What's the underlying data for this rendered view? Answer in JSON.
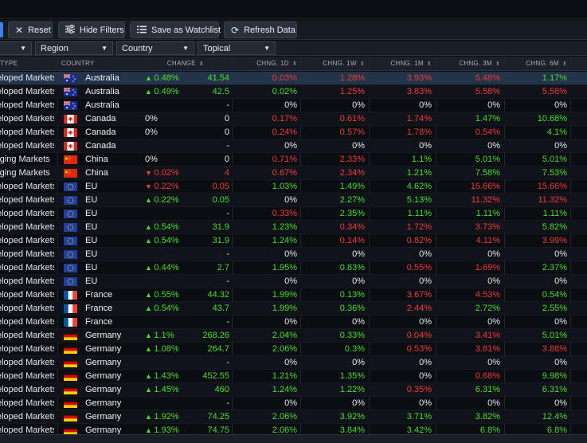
{
  "toolbar": {
    "reset_label": "Reset",
    "hide_filters_label": "Hide Filters",
    "save_watchlist_label": "Save as Watchlist",
    "refresh_label": "Refresh Data"
  },
  "filters": {
    "type_caret": "▼",
    "region_label": "Region",
    "country_label": "Country",
    "topical_label": "Topical"
  },
  "columns": {
    "type": "TYPE",
    "country": "COUNTRY",
    "change": "CHANGE",
    "chng_1d": "CHNG. 1D",
    "chng_1w": "CHNG. 1W",
    "chng_1m": "CHNG. 1M",
    "chng_3m": "CHNG. 3M",
    "chng_6m": "CHNG. 6M"
  },
  "colors": {
    "positive": "#4ade2a",
    "negative": "#ef3b3b",
    "accent": "#3b82f6"
  },
  "rows": [
    {
      "type": "eloped Markets",
      "flag": "au",
      "country": "Australia",
      "dir": "up",
      "pct": "0.48%",
      "val": "41.54",
      "d1": "0.03%",
      "w1": "1.28%",
      "m1": "3.93%",
      "m3": "5.48%",
      "m6": "1.17%",
      "s": [
        "neg",
        "neg",
        "neg",
        "neg",
        "pos"
      ],
      "vs": "pos"
    },
    {
      "type": "eloped Markets",
      "flag": "au",
      "country": "Australia",
      "dir": "up",
      "pct": "0.49%",
      "val": "42.5",
      "d1": "0.02%",
      "w1": "1.25%",
      "m1": "3.83%",
      "m3": "5.58%",
      "m6": "5.58%",
      "s": [
        "pos",
        "neg",
        "neg",
        "neg",
        "neg"
      ],
      "vs": "pos"
    },
    {
      "type": "eloped Markets",
      "flag": "au",
      "country": "Australia",
      "dir": "",
      "pct": "",
      "val": "-",
      "d1": "0%",
      "w1": "0%",
      "m1": "0%",
      "m3": "0%",
      "m6": "0%",
      "s": [
        "neu",
        "neu",
        "neu",
        "neu",
        "neu"
      ],
      "vs": "neu"
    },
    {
      "type": "eloped Markets",
      "flag": "ca",
      "country": "Canada",
      "dir": "",
      "pct": "0%",
      "val": "0",
      "d1": "0.17%",
      "w1": "0.61%",
      "m1": "1.74%",
      "m3": "1.47%",
      "m6": "10.68%",
      "s": [
        "neg",
        "neg",
        "neg",
        "pos",
        "pos"
      ],
      "vs": "neu"
    },
    {
      "type": "eloped Markets",
      "flag": "ca",
      "country": "Canada",
      "dir": "",
      "pct": "0%",
      "val": "0",
      "d1": "0.24%",
      "w1": "0.57%",
      "m1": "1.78%",
      "m3": "0.54%",
      "m6": "4.1%",
      "s": [
        "neg",
        "neg",
        "neg",
        "neg",
        "pos"
      ],
      "vs": "neu"
    },
    {
      "type": "eloped Markets",
      "flag": "ca",
      "country": "Canada",
      "dir": "",
      "pct": "",
      "val": "-",
      "d1": "0%",
      "w1": "0%",
      "m1": "0%",
      "m3": "0%",
      "m6": "0%",
      "s": [
        "neu",
        "neu",
        "neu",
        "neu",
        "neu"
      ],
      "vs": "neu"
    },
    {
      "type": "rging Markets",
      "flag": "cn",
      "country": "China",
      "dir": "",
      "pct": "0%",
      "val": "0",
      "d1": "0.71%",
      "w1": "2.33%",
      "m1": "1.1%",
      "m3": "5.01%",
      "m6": "5.01%",
      "s": [
        "neg",
        "neg",
        "pos",
        "pos",
        "pos"
      ],
      "vs": "neu"
    },
    {
      "type": "rging Markets",
      "flag": "cn",
      "country": "China",
      "dir": "dn",
      "pct": "0.02%",
      "val": "4",
      "d1": "0.67%",
      "w1": "2.34%",
      "m1": "1.21%",
      "m3": "7.58%",
      "m6": "7.53%",
      "s": [
        "neg",
        "neg",
        "pos",
        "pos",
        "pos"
      ],
      "vs": "neg"
    },
    {
      "type": "eloped Markets",
      "flag": "eu",
      "country": "EU",
      "dir": "dn",
      "pct": "0.22%",
      "val": "0.05",
      "d1": "1.03%",
      "w1": "1.49%",
      "m1": "4.62%",
      "m3": "15.66%",
      "m6": "15.66%",
      "s": [
        "pos",
        "pos",
        "pos",
        "neg",
        "neg"
      ],
      "vs": "neg"
    },
    {
      "type": "eloped Markets",
      "flag": "eu",
      "country": "EU",
      "dir": "up",
      "pct": "0.22%",
      "val": "0.05",
      "d1": "0%",
      "w1": "2.27%",
      "m1": "5.13%",
      "m3": "11.32%",
      "m6": "11.32%",
      "s": [
        "neu",
        "pos",
        "pos",
        "neg",
        "neg"
      ],
      "vs": "pos"
    },
    {
      "type": "eloped Markets",
      "flag": "eu",
      "country": "EU",
      "dir": "",
      "pct": "",
      "val": "-",
      "d1": "0.33%",
      "w1": "2.35%",
      "m1": "1.11%",
      "m3": "1.11%",
      "m6": "1.11%",
      "s": [
        "neg",
        "pos",
        "pos",
        "pos",
        "pos"
      ],
      "vs": "neu"
    },
    {
      "type": "eloped Markets",
      "flag": "eu",
      "country": "EU",
      "dir": "up",
      "pct": "0.54%",
      "val": "31.9",
      "d1": "1.23%",
      "w1": "0.34%",
      "m1": "1.72%",
      "m3": "3.73%",
      "m6": "5.82%",
      "s": [
        "pos",
        "neg",
        "neg",
        "neg",
        "pos"
      ],
      "vs": "pos"
    },
    {
      "type": "eloped Markets",
      "flag": "eu",
      "country": "EU",
      "dir": "up",
      "pct": "0.54%",
      "val": "31.9",
      "d1": "1.24%",
      "w1": "0.14%",
      "m1": "0.82%",
      "m3": "4.11%",
      "m6": "3.99%",
      "s": [
        "pos",
        "neg",
        "neg",
        "neg",
        "neg"
      ],
      "vs": "pos"
    },
    {
      "type": "eloped Markets",
      "flag": "eu",
      "country": "EU",
      "dir": "",
      "pct": "",
      "val": "-",
      "d1": "0%",
      "w1": "0%",
      "m1": "0%",
      "m3": "0%",
      "m6": "0%",
      "s": [
        "neu",
        "neu",
        "neu",
        "neu",
        "neu"
      ],
      "vs": "neu"
    },
    {
      "type": "eloped Markets",
      "flag": "eu",
      "country": "EU",
      "dir": "up",
      "pct": "0.44%",
      "val": "2.7",
      "d1": "1.95%",
      "w1": "0.83%",
      "m1": "0.55%",
      "m3": "1.69%",
      "m6": "2.37%",
      "s": [
        "pos",
        "pos",
        "neg",
        "neg",
        "pos"
      ],
      "vs": "pos"
    },
    {
      "type": "eloped Markets",
      "flag": "eu",
      "country": "EU",
      "dir": "",
      "pct": "",
      "val": "-",
      "d1": "0%",
      "w1": "0%",
      "m1": "0%",
      "m3": "0%",
      "m6": "0%",
      "s": [
        "neu",
        "neu",
        "neu",
        "neu",
        "neu"
      ],
      "vs": "neu"
    },
    {
      "type": "eloped Markets",
      "flag": "fr",
      "country": "France",
      "dir": "up",
      "pct": "0.55%",
      "val": "44.32",
      "d1": "1.99%",
      "w1": "0.13%",
      "m1": "3.67%",
      "m3": "4.53%",
      "m6": "0.54%",
      "s": [
        "pos",
        "pos",
        "neg",
        "neg",
        "pos"
      ],
      "vs": "pos"
    },
    {
      "type": "eloped Markets",
      "flag": "fr",
      "country": "France",
      "dir": "up",
      "pct": "0.54%",
      "val": "43.7",
      "d1": "1.99%",
      "w1": "0.36%",
      "m1": "2.44%",
      "m3": "2.72%",
      "m6": "2.55%",
      "s": [
        "pos",
        "pos",
        "neg",
        "pos",
        "pos"
      ],
      "vs": "pos"
    },
    {
      "type": "eloped Markets",
      "flag": "fr",
      "country": "France",
      "dir": "",
      "pct": "",
      "val": "-",
      "d1": "0%",
      "w1": "0%",
      "m1": "0%",
      "m3": "0%",
      "m6": "0%",
      "s": [
        "neu",
        "neu",
        "neu",
        "neu",
        "neu"
      ],
      "vs": "neu"
    },
    {
      "type": "eloped Markets",
      "flag": "de",
      "country": "Germany",
      "dir": "up",
      "pct": "1.1%",
      "val": "268.26",
      "d1": "2.04%",
      "w1": "0.33%",
      "m1": "0.04%",
      "m3": "3.41%",
      "m6": "5.01%",
      "s": [
        "pos",
        "pos",
        "neg",
        "neg",
        "pos"
      ],
      "vs": "pos"
    },
    {
      "type": "eloped Markets",
      "flag": "de",
      "country": "Germany",
      "dir": "up",
      "pct": "1.08%",
      "val": "264.7",
      "d1": "2.06%",
      "w1": "0.3%",
      "m1": "0.53%",
      "m3": "3.81%",
      "m6": "3.88%",
      "s": [
        "pos",
        "pos",
        "neg",
        "neg",
        "neg"
      ],
      "vs": "pos"
    },
    {
      "type": "eloped Markets",
      "flag": "de",
      "country": "Germany",
      "dir": "",
      "pct": "",
      "val": "-",
      "d1": "0%",
      "w1": "0%",
      "m1": "0%",
      "m3": "0%",
      "m6": "0%",
      "s": [
        "neu",
        "neu",
        "neu",
        "neu",
        "neu"
      ],
      "vs": "neu"
    },
    {
      "type": "eloped Markets",
      "flag": "de",
      "country": "Germany",
      "dir": "up",
      "pct": "1.43%",
      "val": "452.55",
      "d1": "1.21%",
      "w1": "1.35%",
      "m1": "0%",
      "m3": "0.68%",
      "m6": "9.98%",
      "s": [
        "pos",
        "pos",
        "neu",
        "neg",
        "pos"
      ],
      "vs": "pos"
    },
    {
      "type": "eloped Markets",
      "flag": "de",
      "country": "Germany",
      "dir": "up",
      "pct": "1.45%",
      "val": "460",
      "d1": "1.24%",
      "w1": "1.22%",
      "m1": "0.35%",
      "m3": "6.31%",
      "m6": "6.31%",
      "s": [
        "pos",
        "pos",
        "neg",
        "pos",
        "pos"
      ],
      "vs": "pos"
    },
    {
      "type": "eloped Markets",
      "flag": "de",
      "country": "Germany",
      "dir": "",
      "pct": "",
      "val": "-",
      "d1": "0%",
      "w1": "0%",
      "m1": "0%",
      "m3": "0%",
      "m6": "0%",
      "s": [
        "neu",
        "neu",
        "neu",
        "neu",
        "neu"
      ],
      "vs": "neu"
    },
    {
      "type": "eloped Markets",
      "flag": "de",
      "country": "Germany",
      "dir": "up",
      "pct": "1.92%",
      "val": "74.25",
      "d1": "2.06%",
      "w1": "3.92%",
      "m1": "3.71%",
      "m3": "3.82%",
      "m6": "12.4%",
      "s": [
        "pos",
        "pos",
        "pos",
        "pos",
        "pos"
      ],
      "vs": "pos"
    },
    {
      "type": "eloped Markets",
      "flag": "de",
      "country": "Germany",
      "dir": "up",
      "pct": "1.93%",
      "val": "74.75",
      "d1": "2.06%",
      "w1": "3.84%",
      "m1": "3.42%",
      "m3": "6.8%",
      "m6": "6.8%",
      "s": [
        "pos",
        "pos",
        "pos",
        "pos",
        "pos"
      ],
      "vs": "pos"
    }
  ]
}
